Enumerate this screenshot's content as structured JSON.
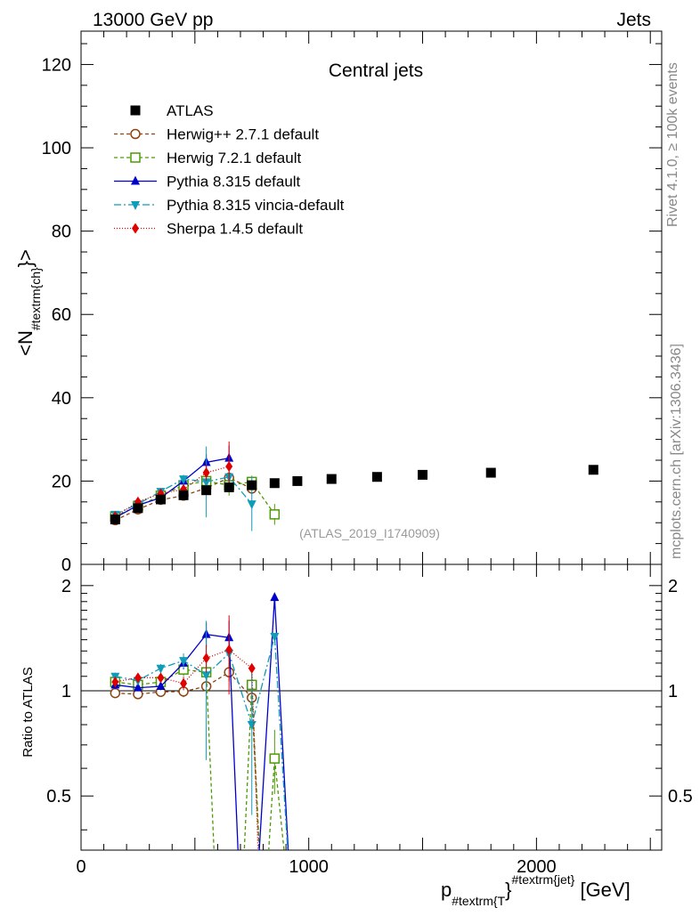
{
  "header": {
    "left": "13000 GeV pp",
    "right": "Jets"
  },
  "side_labels": {
    "rivet": "Rivet 4.1.0, ≥ 100k events",
    "mcplots": "mcplots.cern.ch [arXiv:1306.3436]"
  },
  "chart_data": {
    "type": "scatter",
    "title": "Central jets",
    "analysis_label": "(ATLAS_2019_I1740909)",
    "xlabel": {
      "main": "p",
      "sub": "#textrm{T",
      "sup": "#textrm{jet}",
      "brace": "}",
      "unit": " [GeV]"
    },
    "ylabel_main": {
      "prefix": "<N",
      "sub": "#textrm{ch}",
      "suffix": "}>"
    },
    "ylabel_ratio": "Ratio to ATLAS",
    "xlim": [
      0,
      2550
    ],
    "ylim_main": [
      0,
      128
    ],
    "ylim_ratio": [
      0.35,
      2.3
    ],
    "x_ticks": [
      0,
      1000,
      2000
    ],
    "x_tick_labels": [
      "0",
      "1000",
      "2000"
    ],
    "y_ticks_main": [
      0,
      20,
      40,
      60,
      80,
      100,
      120
    ],
    "y_tick_labels_main": [
      "0",
      "20",
      "40",
      "60",
      "80",
      "100",
      "120"
    ],
    "y_ticks_ratio": [
      0.5,
      1,
      2
    ],
    "y_tick_labels_ratio": [
      "0.5",
      "1",
      "2"
    ],
    "data": {
      "name": "ATLAS",
      "color": "#000000",
      "x": [
        150,
        250,
        350,
        450,
        550,
        650,
        750,
        850,
        950,
        1100,
        1300,
        1500,
        1800,
        2250
      ],
      "y": [
        10.8,
        13.5,
        15.6,
        16.6,
        17.8,
        18.5,
        19.0,
        19.5,
        20.0,
        20.5,
        21.0,
        21.5,
        22.0,
        22.7
      ]
    },
    "series": [
      {
        "name": "Herwig++ 2.7.1 default",
        "color": "#8b4513",
        "marker": "circle-open",
        "dash": "4,3",
        "x": [
          150,
          250,
          350,
          450,
          550,
          650,
          750
        ],
        "y": [
          10.6,
          13.2,
          15.5,
          16.5,
          18.3,
          20.8,
          18.2
        ],
        "err": [
          0.3,
          0.3,
          0.4,
          0.6,
          0.9,
          1.2,
          1.3
        ],
        "ratio_x": [
          150,
          250,
          350,
          450,
          550,
          650,
          750,
          800
        ],
        "ratio_y": [
          0.985,
          0.978,
          0.993,
          0.995,
          1.03,
          1.13,
          0.955,
          0.2
        ]
      },
      {
        "name": "Herwig 7.2.1 default",
        "color": "#4e9a06",
        "marker": "square-open",
        "dash": "4,3",
        "x": [
          150,
          250,
          350,
          450,
          550,
          650,
          750,
          850
        ],
        "y": [
          11.5,
          14.0,
          16.5,
          19.0,
          20.0,
          19.0,
          19.8,
          12.0
        ],
        "err": [
          0.3,
          0.3,
          0.4,
          0.8,
          1.5,
          2.5,
          1.5,
          2.5
        ],
        "ratio_x": [
          150,
          250,
          350,
          450,
          550,
          600,
          650,
          700,
          750,
          800,
          850,
          930
        ],
        "ratio_y": [
          1.06,
          1.04,
          1.06,
          1.15,
          1.13,
          0.2,
          0.2,
          0.2,
          1.04,
          0.2,
          0.64,
          0.2
        ]
      },
      {
        "name": "Pythia 8.315 default",
        "color": "#0000cc",
        "marker": "triangle-up",
        "dash": "",
        "x": [
          150,
          250,
          350,
          450,
          550,
          650
        ],
        "y": [
          11.2,
          14.2,
          16.0,
          20.0,
          24.5,
          25.5
        ],
        "err": [
          0.3,
          0.3,
          0.4,
          0.8,
          2.0,
          3.0
        ],
        "ratio_x": [
          150,
          250,
          350,
          450,
          550,
          650,
          705,
          760,
          850,
          930
        ],
        "ratio_y": [
          1.04,
          1.02,
          1.03,
          1.2,
          1.45,
          1.42,
          0.2,
          0.2,
          1.85,
          0.2
        ]
      },
      {
        "name": "Pythia 8.315 vincia-default",
        "color": "#0e9cb8",
        "marker": "triangle-down",
        "dash": "8,3,2,3",
        "x": [
          150,
          250,
          350,
          450,
          550,
          650,
          750
        ],
        "y": [
          12.0,
          14.5,
          17.5,
          20.5,
          19.8,
          21.0,
          14.5
        ],
        "err": [
          0.3,
          0.3,
          0.5,
          1.0,
          8.5,
          1.8,
          6.5
        ],
        "ratio_x": [
          150,
          250,
          350,
          450,
          550,
          650,
          750,
          850,
          930
        ],
        "ratio_y": [
          1.1,
          1.07,
          1.16,
          1.22,
          1.11,
          1.28,
          0.8,
          1.43,
          0.2
        ]
      },
      {
        "name": "Sherpa 1.4.5 default",
        "color": "#e00000",
        "marker": "diamond",
        "dash": "1,2",
        "x": [
          150,
          250,
          350,
          450,
          550,
          650
        ],
        "y": [
          11.5,
          15.0,
          17.0,
          18.0,
          22.0,
          23.5
        ],
        "err": [
          0.4,
          0.4,
          0.5,
          0.8,
          2.0,
          6.0
        ],
        "ratio_x": [
          150,
          250,
          350,
          450,
          550,
          650,
          750,
          790
        ],
        "ratio_y": [
          1.06,
          1.09,
          1.09,
          1.05,
          1.24,
          1.31,
          1.16,
          0.2
        ]
      }
    ]
  }
}
